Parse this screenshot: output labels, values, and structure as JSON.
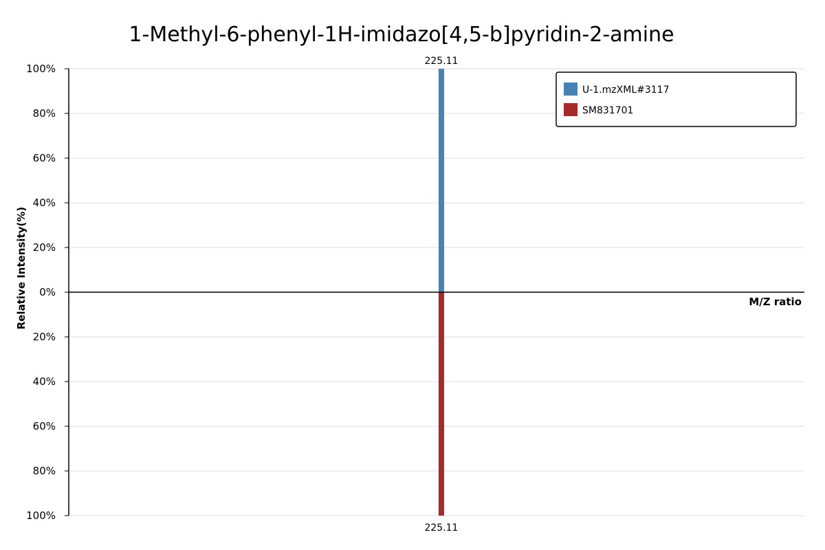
{
  "chart_data": {
    "type": "bar",
    "title": "1-Methyl-6-phenyl-1H-imidazo[4,5-b]pyridin-2-amine",
    "xlabel": "M/Z ratio",
    "ylabel": "Relative Intensity(%)",
    "ylim": [
      -100,
      100
    ],
    "yticks": [
      "100%",
      "80%",
      "60%",
      "40%",
      "20%",
      "0%",
      "20%",
      "40%",
      "60%",
      "80%",
      "100%"
    ],
    "grid": true,
    "legend_position": "top-right",
    "series": [
      {
        "name": "U-1.mzXML#3117",
        "color": "#4682b4",
        "direction": "up",
        "peaks": [
          {
            "mz": 225.11,
            "intensity": 100,
            "label": "225.11"
          }
        ]
      },
      {
        "name": "SM831701",
        "color": "#a52a2a",
        "direction": "down",
        "peaks": [
          {
            "mz": 225.11,
            "intensity": 100,
            "label": "225.11"
          }
        ]
      }
    ]
  }
}
